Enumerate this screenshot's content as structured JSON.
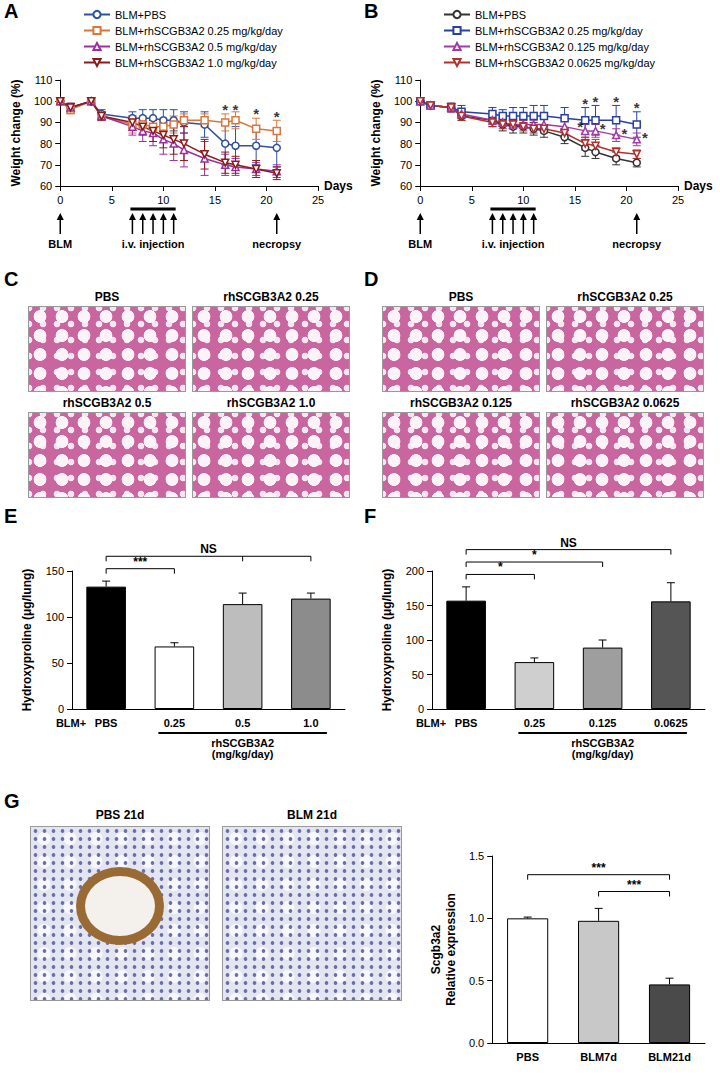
{
  "chart_data": [
    {
      "panel": "A",
      "type": "line",
      "xlabel": "Days",
      "ylabel": "Weight change (%)",
      "xlim": [
        0,
        25
      ],
      "xticks": [
        0,
        5,
        10,
        15,
        20,
        25
      ],
      "ylim": [
        60,
        110
      ],
      "yticks": [
        60,
        70,
        80,
        90,
        100,
        110
      ],
      "legend": "top",
      "x": [
        0,
        1,
        3,
        4,
        7,
        8,
        9,
        10,
        11,
        12,
        14,
        16,
        17,
        19,
        21
      ],
      "series": [
        {
          "name": "BLM+PBS",
          "color": "#2f4f9f",
          "marker": "circle",
          "values": [
            100,
            97,
            100,
            94,
            92,
            92,
            92,
            91,
            91,
            90,
            89,
            80,
            79,
            79,
            78
          ],
          "errors": [
            0,
            2,
            1,
            2,
            3,
            4,
            4,
            5,
            5,
            5,
            6,
            10,
            9,
            9,
            9
          ]
        },
        {
          "name": "BLM+rhSCGB3A2 0.25 mg/kg/day",
          "color": "#d9773a",
          "marker": "square",
          "values": [
            100,
            96,
            100,
            93,
            89,
            89,
            88,
            88,
            89,
            91,
            91,
            90,
            91,
            87,
            86
          ],
          "errors": [
            0,
            2,
            1,
            2,
            4,
            4,
            4,
            4,
            4,
            3,
            3,
            4,
            4,
            5,
            5
          ]
        },
        {
          "name": "BLM+rhSCGB3A2 0.5 mg/kg/day",
          "color": "#9b2fa0",
          "marker": "triangle",
          "values": [
            100,
            97,
            100,
            93,
            88,
            86,
            85,
            82,
            80,
            77,
            73,
            70,
            69,
            68,
            67
          ],
          "errors": [
            0,
            2,
            1,
            2,
            4,
            5,
            6,
            7,
            8,
            8,
            8,
            5,
            4,
            3,
            3
          ]
        },
        {
          "name": "BLM+rhSCGB3A2 1.0 mg/kg/day",
          "color": "#8b1a1a",
          "marker": "triangle_down",
          "values": [
            100,
            97,
            100,
            93,
            90,
            88,
            86,
            84,
            82,
            80,
            75,
            71,
            70,
            68,
            66
          ],
          "errors": [
            0,
            2,
            1,
            2,
            3,
            4,
            5,
            6,
            7,
            8,
            7,
            5,
            4,
            4,
            3
          ]
        }
      ],
      "annotations": [
        {
          "text": "*",
          "x": 16,
          "y": 96
        },
        {
          "text": "*",
          "x": 17,
          "y": 96
        },
        {
          "text": "*",
          "x": 19,
          "y": 94
        },
        {
          "text": "*",
          "x": 21,
          "y": 93
        }
      ],
      "events": [
        {
          "text": "BLM",
          "x": [
            0
          ]
        },
        {
          "text": "i.v. injection",
          "x": [
            7,
            8,
            9,
            10,
            11
          ]
        },
        {
          "text": "necropsy",
          "x": [
            21
          ]
        }
      ]
    },
    {
      "panel": "B",
      "type": "line",
      "xlabel": "Days",
      "ylabel": "Weight change (%)",
      "xlim": [
        0,
        25
      ],
      "xticks": [
        0,
        5,
        10,
        15,
        20,
        25
      ],
      "ylim": [
        60,
        110
      ],
      "yticks": [
        60,
        70,
        80,
        90,
        100,
        110
      ],
      "legend": "top",
      "x": [
        0,
        1,
        3,
        4,
        7,
        8,
        9,
        10,
        11,
        12,
        14,
        16,
        17,
        19,
        21
      ],
      "series": [
        {
          "name": "BLM+PBS",
          "color": "#333333",
          "marker": "circle",
          "values": [
            100,
            98,
            97,
            93,
            91,
            89,
            88,
            88,
            87,
            86,
            83,
            78,
            76,
            73,
            71
          ],
          "errors": [
            0,
            1,
            2,
            2,
            3,
            3,
            3,
            3,
            3,
            3,
            3,
            4,
            3,
            3,
            2
          ]
        },
        {
          "name": "BLM+rhSCGB3A2 0.25 mg/kg/day",
          "color": "#2940a0",
          "marker": "square",
          "values": [
            100,
            98,
            97,
            95,
            94,
            93,
            93,
            93,
            93,
            93,
            92,
            91,
            91,
            91,
            89
          ],
          "errors": [
            0,
            1,
            2,
            3,
            3,
            3,
            4,
            4,
            5,
            5,
            5,
            6,
            7,
            7,
            6
          ]
        },
        {
          "name": "BLM+rhSCGB3A2 0.125 mg/kg/day",
          "color": "#a03aa8",
          "marker": "triangle",
          "values": [
            100,
            98,
            97,
            94,
            91,
            90,
            89,
            89,
            89,
            89,
            88,
            86,
            86,
            84,
            82
          ],
          "errors": [
            0,
            1,
            2,
            2,
            2,
            2,
            2,
            2,
            2,
            3,
            3,
            3,
            3,
            3,
            3
          ]
        },
        {
          "name": "BLM+rhSCGB3A2 0.0625 mg/kg/day",
          "color": "#b5302a",
          "marker": "triangle_down",
          "values": [
            100,
            98,
            97,
            93,
            90,
            89,
            89,
            88,
            87,
            87,
            85,
            80,
            79,
            76,
            75
          ],
          "errors": [
            0,
            1,
            2,
            2,
            2,
            2,
            2,
            2,
            2,
            2,
            2,
            3,
            3,
            2,
            2
          ]
        }
      ],
      "annotations": [
        {
          "text": "*",
          "x": 16,
          "y": 99
        },
        {
          "text": "*",
          "x": 17,
          "y": 100
        },
        {
          "text": "*",
          "x": 19,
          "y": 100
        },
        {
          "text": "*",
          "x": 21,
          "y": 97
        },
        {
          "text": "*",
          "x": 15.5,
          "y": 88
        },
        {
          "text": "*",
          "x": 17.7,
          "y": 87
        },
        {
          "text": "*",
          "x": 19.8,
          "y": 85
        },
        {
          "text": "*",
          "x": 21.8,
          "y": 83
        }
      ],
      "events": [
        {
          "text": "BLM",
          "x": [
            0
          ]
        },
        {
          "text": "i.v. injection",
          "x": [
            7,
            8,
            9,
            10,
            11
          ]
        },
        {
          "text": "necropsy",
          "x": [
            21
          ]
        }
      ]
    },
    {
      "panel": "E",
      "type": "bar",
      "ylabel": "Hydroxyproline (μg/lung)",
      "categories": [
        "PBS",
        "0.25",
        "0.5",
        "1.0"
      ],
      "values": [
        133,
        68,
        114,
        120
      ],
      "errors": [
        6,
        4,
        12,
        6
      ],
      "colors": [
        "#000000",
        "#ffffff",
        "#bdbdbd",
        "#8c8c8c"
      ],
      "ylim": [
        0,
        150
      ],
      "yticks": [
        0,
        50,
        100,
        150
      ],
      "x_prefix": "BLM+",
      "group_label": "rhSCGB3A2\n(mg/kg/day)",
      "comparisons": [
        {
          "from": 0,
          "to": [
            1
          ],
          "text": "***"
        },
        {
          "from": 0,
          "to": [
            2,
            3
          ],
          "text": "NS"
        }
      ]
    },
    {
      "panel": "F",
      "type": "bar",
      "ylabel": "Hydroxyproline (μg/lung)",
      "categories": [
        "PBS",
        "0.25",
        "0.125",
        "0.0625"
      ],
      "values": [
        157,
        68,
        89,
        156
      ],
      "errors": [
        20,
        6,
        11,
        27
      ],
      "colors": [
        "#000000",
        "#cfcfcf",
        "#9e9e9e",
        "#555555"
      ],
      "ylim": [
        0,
        200
      ],
      "yticks": [
        0,
        50,
        100,
        150,
        200
      ],
      "x_prefix": "BLM+",
      "group_label": "rhSCGB3A2\n(mg/kg/day)",
      "comparisons": [
        {
          "from": 0,
          "to": [
            1
          ],
          "text": "*"
        },
        {
          "from": 0,
          "to": [
            2
          ],
          "text": "*"
        },
        {
          "from": 0,
          "to": [
            3
          ],
          "text": "NS"
        }
      ]
    },
    {
      "type": "bar",
      "ylabel": "Scgb3a2\nRelative expression",
      "categories": [
        "PBS",
        "BLM7d",
        "BLM21d"
      ],
      "values": [
        1.0,
        0.98,
        0.47
      ],
      "errors": [
        0.01,
        0.1,
        0.05
      ],
      "colors": [
        "#ffffff",
        "#c8c8c8",
        "#4a4a4a"
      ],
      "ylim": [
        0,
        1.5
      ],
      "yticks": [
        {
          "value": 0,
          "label": "0.0"
        },
        {
          "value": 0.5,
          "label": "0.5"
        },
        {
          "value": 1,
          "label": "1.0"
        },
        {
          "value": 1.5,
          "label": "1.5"
        }
      ],
      "comparisons": [
        {
          "from": 1,
          "to": [
            2
          ],
          "text": "***"
        },
        {
          "from": 0,
          "to": [
            2
          ],
          "text": "***"
        }
      ]
    }
  ],
  "images": [
    {
      "panel": "C",
      "labels": [
        "PBS",
        "rhSCGB3A2 0.25",
        "rhSCGB3A2 0.5",
        "rhSCGB3A2 1.0"
      ]
    },
    {
      "panel": "D",
      "labels": [
        "PBS",
        "rhSCGB3A2 0.25",
        "rhSCGB3A2 0.125",
        "rhSCGB3A2 0.0625"
      ]
    },
    {
      "panel": "G",
      "labels": [
        "PBS 21d",
        "BLM 21d"
      ]
    }
  ]
}
